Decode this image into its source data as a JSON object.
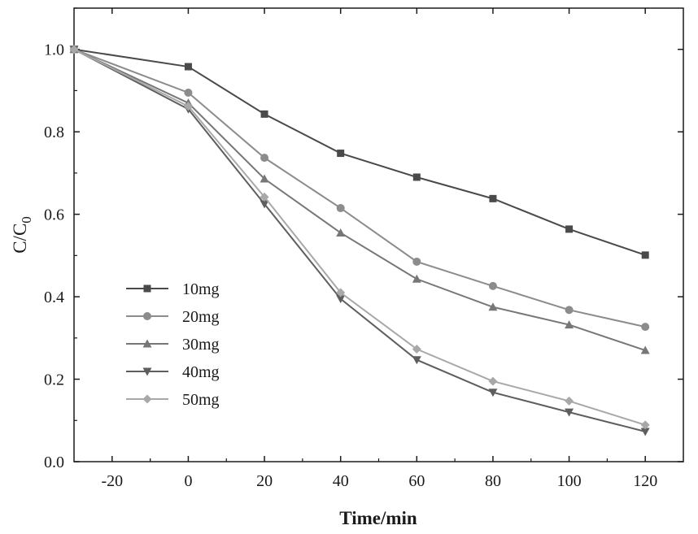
{
  "chart_data": {
    "type": "line",
    "title": "",
    "xlabel": "Time/min",
    "ylabel_main": "C/C",
    "ylabel_sub": "0",
    "xlim": [
      -30,
      130
    ],
    "ylim": [
      0,
      1.1
    ],
    "x_ticks": [
      -20,
      0,
      20,
      40,
      60,
      80,
      100,
      120
    ],
    "x_tick_labels": [
      "-20",
      "0",
      "20",
      "40",
      "60",
      "80",
      "100",
      "120"
    ],
    "y_ticks": [
      0,
      0.2,
      0.4,
      0.6,
      0.8,
      1.0
    ],
    "y_tick_labels": [
      "0.0",
      "0.2",
      "0.4",
      "0.6",
      "0.8",
      "1.0"
    ],
    "grid": false,
    "legend_position": "lower-left",
    "x": [
      -30,
      0,
      20,
      40,
      60,
      80,
      100,
      120
    ],
    "series": [
      {
        "name": "10mg",
        "marker": "square",
        "color": "#4a4a4a",
        "values": [
          1.0,
          0.958,
          0.843,
          0.748,
          0.69,
          0.638,
          0.564,
          0.501
        ]
      },
      {
        "name": "20mg",
        "marker": "circle",
        "color": "#8c8c8c",
        "values": [
          1.0,
          0.895,
          0.737,
          0.615,
          0.485,
          0.426,
          0.368,
          0.327
        ]
      },
      {
        "name": "30mg",
        "marker": "triangle-up",
        "color": "#777777",
        "values": [
          1.0,
          0.87,
          0.686,
          0.555,
          0.443,
          0.375,
          0.332,
          0.27
        ]
      },
      {
        "name": "40mg",
        "marker": "triangle-down",
        "color": "#5e5e5e",
        "values": [
          1.0,
          0.855,
          0.625,
          0.395,
          0.247,
          0.168,
          0.12,
          0.073
        ]
      },
      {
        "name": "50mg",
        "marker": "diamond",
        "color": "#a8a8a8",
        "values": [
          1.0,
          0.862,
          0.642,
          0.41,
          0.273,
          0.195,
          0.147,
          0.089
        ]
      }
    ]
  }
}
